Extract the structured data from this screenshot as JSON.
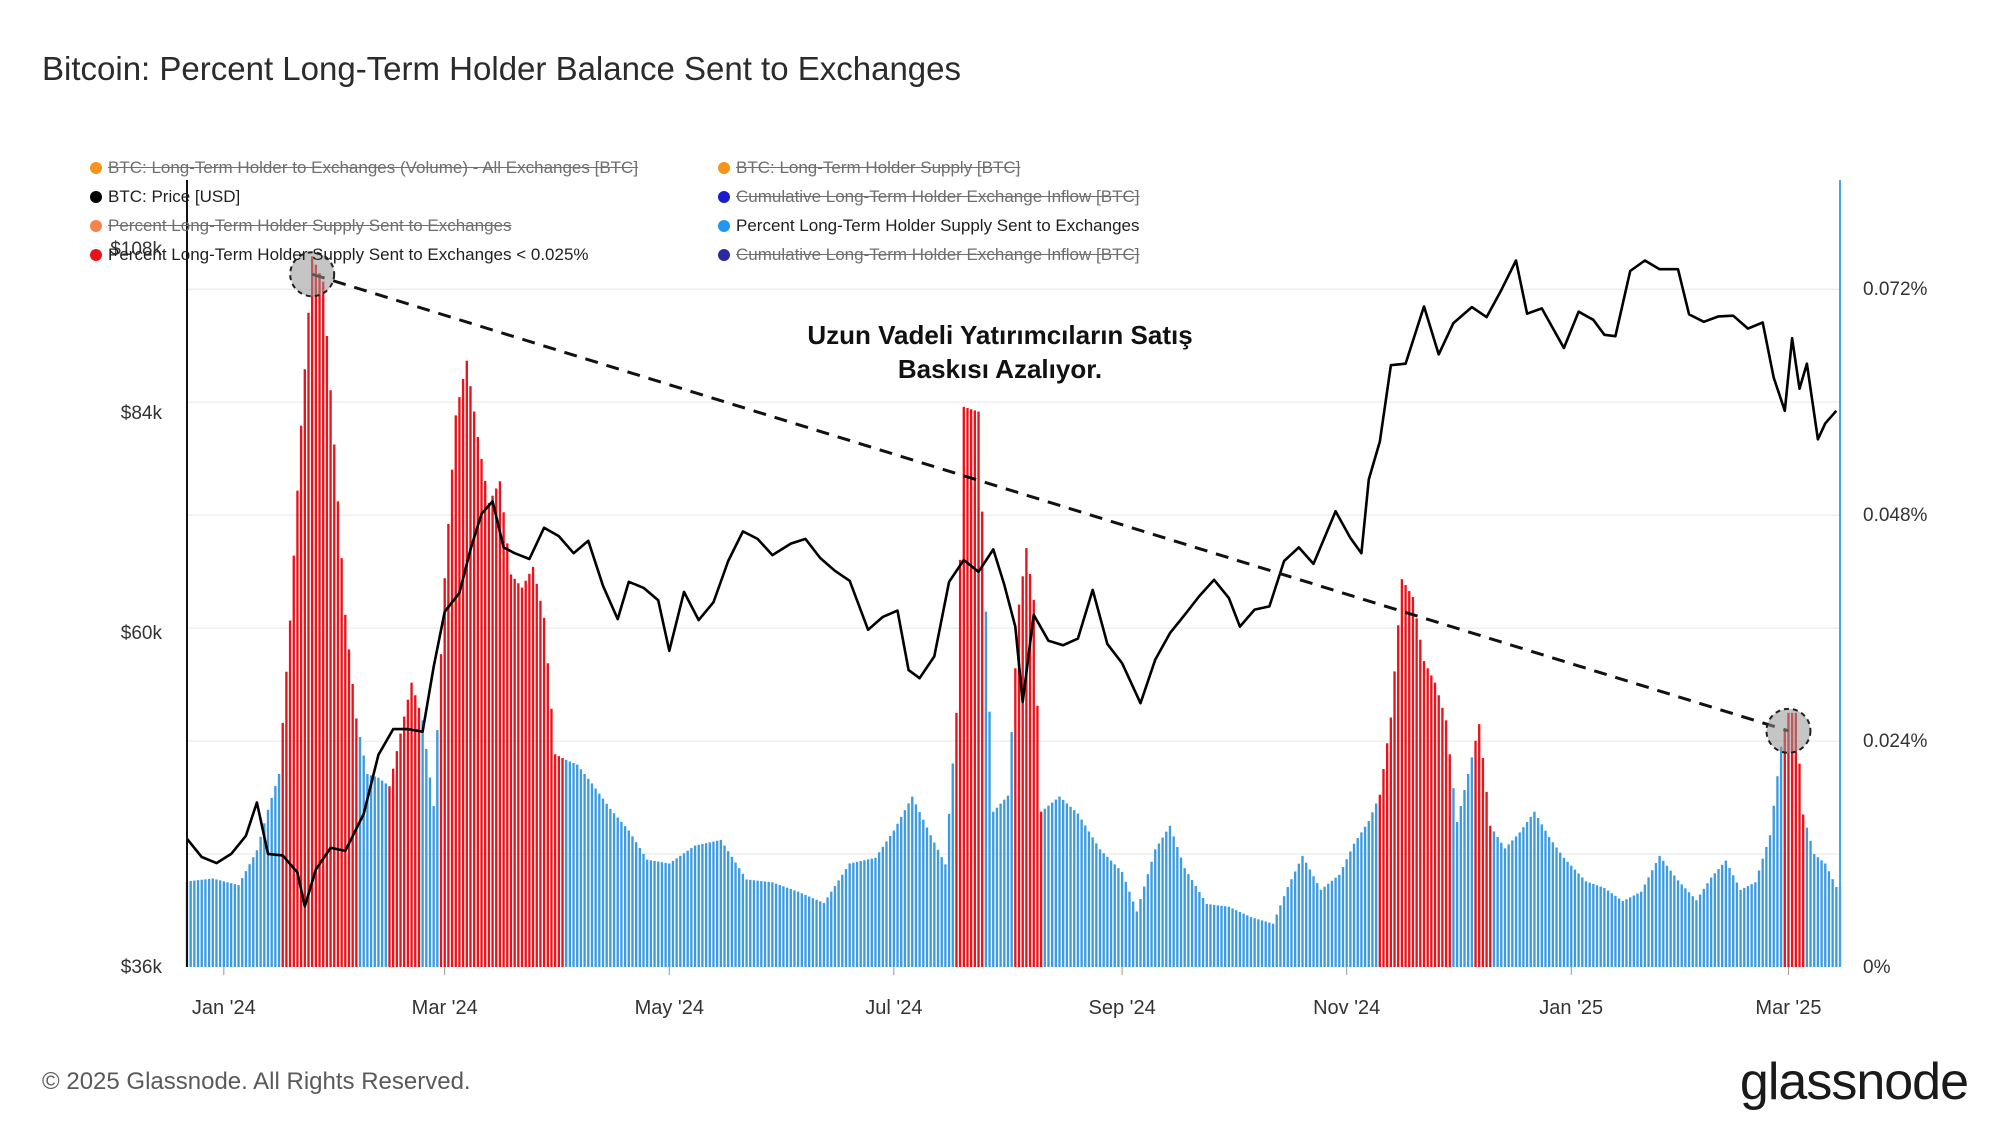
{
  "title": "Bitcoin: Percent Long-Term Holder Balance Sent to Exchanges",
  "copyright": "© 2025 Glassnode. All Rights Reserved.",
  "logo": "glassnode",
  "annotation": [
    "Uzun Vadeli Yatırımcıların Satış",
    "Baskısı Azalıyor."
  ],
  "legend": [
    {
      "label": "BTC: Long-Term Holder to Exchanges (Volume) - All Exchanges [BTC]",
      "color": "#f7931a",
      "enabled": false
    },
    {
      "label": "BTC: Long-Term Holder Supply [BTC]",
      "color": "#f7931a",
      "enabled": false
    },
    {
      "label": "BTC: Price [USD]",
      "color": "#000000",
      "enabled": true
    },
    {
      "label": "Cumulative Long-Term Holder Exchange Inflow [BTC]",
      "color": "#1c1ccf",
      "enabled": false
    },
    {
      "label": "Percent Long-Term Holder Supply Sent to Exchanges",
      "color": "#f5844c",
      "enabled": false
    },
    {
      "label": "Percent Long-Term Holder Supply Sent to Exchanges",
      "color": "#2196f3",
      "enabled": true
    },
    {
      "label": "Percent Long-Term Holder Supply Sent to Exchanges < 0.025%",
      "color": "#e8141c",
      "enabled": true
    },
    {
      "label": "Cumulative Long-Term Holder Exchange Inflow [BTC]",
      "color": "#2a2aa0",
      "enabled": false
    }
  ],
  "colors": {
    "bar_normal": "#3d9be0",
    "bar_highlight": "#e8141c",
    "price": "#000000",
    "grid": "#e6e6e6",
    "right_axis": "#4aa3e8"
  },
  "chart_data": {
    "type": "bar",
    "x_range": [
      "2023-12-22",
      "2025-03-15"
    ],
    "x_ticks": [
      {
        "date": "2024-01-01",
        "label": "Jan '24"
      },
      {
        "date": "2024-03-01",
        "label": "Mar '24"
      },
      {
        "date": "2024-05-01",
        "label": "May '24"
      },
      {
        "date": "2024-07-01",
        "label": "Jul '24"
      },
      {
        "date": "2024-09-01",
        "label": "Sep '24"
      },
      {
        "date": "2024-11-01",
        "label": "Nov '24"
      },
      {
        "date": "2025-01-01",
        "label": "Jan '25"
      },
      {
        "date": "2025-03-01",
        "label": "Mar '25"
      }
    ],
    "y_left": {
      "ticks": [
        36000,
        60000,
        84000,
        108000
      ],
      "labels": [
        "$36k",
        "$60k",
        "$84k",
        "$108k"
      ],
      "range": [
        36000,
        120000
      ],
      "scale": "log"
    },
    "y_right": {
      "ticks": [
        0,
        0.024,
        0.048,
        0.072
      ],
      "labels": [
        "0%",
        "0.024%",
        "0.048%",
        "0.072%"
      ],
      "range": [
        0,
        0.0836
      ]
    },
    "price_series": [
      [
        "2023-12-22",
        43800
      ],
      [
        "2023-12-26",
        42600
      ],
      [
        "2023-12-30",
        42200
      ],
      [
        "2024-01-03",
        42800
      ],
      [
        "2024-01-07",
        44000
      ],
      [
        "2024-01-10",
        46300
      ],
      [
        "2024-01-13",
        42800
      ],
      [
        "2024-01-17",
        42700
      ],
      [
        "2024-01-21",
        41600
      ],
      [
        "2024-01-23",
        39500
      ],
      [
        "2024-01-26",
        41800
      ],
      [
        "2024-01-30",
        43200
      ],
      [
        "2024-02-03",
        43000
      ],
      [
        "2024-02-08",
        45500
      ],
      [
        "2024-02-12",
        49800
      ],
      [
        "2024-02-16",
        51800
      ],
      [
        "2024-02-20",
        51800
      ],
      [
        "2024-02-24",
        51600
      ],
      [
        "2024-02-27",
        57000
      ],
      [
        "2024-03-01",
        62000
      ],
      [
        "2024-03-05",
        63800
      ],
      [
        "2024-03-08",
        68200
      ],
      [
        "2024-03-11",
        72000
      ],
      [
        "2024-03-14",
        73400
      ],
      [
        "2024-03-17",
        68400
      ],
      [
        "2024-03-20",
        67800
      ],
      [
        "2024-03-24",
        67200
      ],
      [
        "2024-03-28",
        70500
      ],
      [
        "2024-04-01",
        69600
      ],
      [
        "2024-04-05",
        67800
      ],
      [
        "2024-04-09",
        69100
      ],
      [
        "2024-04-13",
        64500
      ],
      [
        "2024-04-17",
        61300
      ],
      [
        "2024-04-20",
        64900
      ],
      [
        "2024-04-24",
        64300
      ],
      [
        "2024-04-28",
        63100
      ],
      [
        "2024-05-01",
        58400
      ],
      [
        "2024-05-05",
        63900
      ],
      [
        "2024-05-09",
        61200
      ],
      [
        "2024-05-13",
        62900
      ],
      [
        "2024-05-17",
        67000
      ],
      [
        "2024-05-21",
        70100
      ],
      [
        "2024-05-25",
        69300
      ],
      [
        "2024-05-29",
        67600
      ],
      [
        "2024-06-03",
        68800
      ],
      [
        "2024-06-07",
        69300
      ],
      [
        "2024-06-11",
        67300
      ],
      [
        "2024-06-15",
        66000
      ],
      [
        "2024-06-19",
        65000
      ],
      [
        "2024-06-24",
        60300
      ],
      [
        "2024-06-28",
        61500
      ],
      [
        "2024-07-02",
        62100
      ],
      [
        "2024-07-05",
        56700
      ],
      [
        "2024-07-08",
        56000
      ],
      [
        "2024-07-12",
        57900
      ],
      [
        "2024-07-16",
        64900
      ],
      [
        "2024-07-20",
        67100
      ],
      [
        "2024-07-24",
        65900
      ],
      [
        "2024-07-28",
        68200
      ],
      [
        "2024-07-31",
        64600
      ],
      [
        "2024-08-03",
        60600
      ],
      [
        "2024-08-05",
        54000
      ],
      [
        "2024-08-08",
        61700
      ],
      [
        "2024-08-12",
        59300
      ],
      [
        "2024-08-16",
        58900
      ],
      [
        "2024-08-20",
        59500
      ],
      [
        "2024-08-24",
        64100
      ],
      [
        "2024-08-28",
        59000
      ],
      [
        "2024-09-01",
        57300
      ],
      [
        "2024-09-06",
        53900
      ],
      [
        "2024-09-10",
        57600
      ],
      [
        "2024-09-14",
        60000
      ],
      [
        "2024-09-18",
        61700
      ],
      [
        "2024-09-22",
        63500
      ],
      [
        "2024-09-26",
        65100
      ],
      [
        "2024-09-30",
        63300
      ],
      [
        "2024-10-03",
        60600
      ],
      [
        "2024-10-07",
        62200
      ],
      [
        "2024-10-11",
        62500
      ],
      [
        "2024-10-15",
        67000
      ],
      [
        "2024-10-19",
        68400
      ],
      [
        "2024-10-23",
        66700
      ],
      [
        "2024-10-29",
        72300
      ],
      [
        "2024-11-02",
        69400
      ],
      [
        "2024-11-05",
        67800
      ],
      [
        "2024-11-07",
        75900
      ],
      [
        "2024-11-10",
        80400
      ],
      [
        "2024-11-13",
        90400
      ],
      [
        "2024-11-17",
        90600
      ],
      [
        "2024-11-22",
        98900
      ],
      [
        "2024-11-26",
        91900
      ],
      [
        "2024-11-30",
        96400
      ],
      [
        "2024-12-05",
        98800
      ],
      [
        "2024-12-09",
        97300
      ],
      [
        "2024-12-13",
        101400
      ],
      [
        "2024-12-17",
        106100
      ],
      [
        "2024-12-20",
        97800
      ],
      [
        "2024-12-24",
        98600
      ],
      [
        "2024-12-30",
        92800
      ],
      [
        "2025-01-03",
        98100
      ],
      [
        "2025-01-07",
        96900
      ],
      [
        "2025-01-10",
        94700
      ],
      [
        "2025-01-13",
        94500
      ],
      [
        "2025-01-17",
        104400
      ],
      [
        "2025-01-21",
        106100
      ],
      [
        "2025-01-25",
        104700
      ],
      [
        "2025-01-30",
        104700
      ],
      [
        "2025-02-02",
        97700
      ],
      [
        "2025-02-06",
        96600
      ],
      [
        "2025-02-10",
        97400
      ],
      [
        "2025-02-14",
        97500
      ],
      [
        "2025-02-18",
        95600
      ],
      [
        "2025-02-22",
        96500
      ],
      [
        "2025-02-25",
        88700
      ],
      [
        "2025-02-28",
        84300
      ],
      [
        "2025-03-02",
        94200
      ],
      [
        "2025-03-04",
        87200
      ],
      [
        "2025-03-06",
        90600
      ],
      [
        "2025-03-09",
        80700
      ],
      [
        "2025-03-11",
        82700
      ],
      [
        "2025-03-14",
        84300
      ]
    ],
    "pct_series": [
      [
        "2023-12-22",
        0.0091
      ],
      [
        "2023-12-29",
        0.0094
      ],
      [
        "2024-01-05",
        0.0087
      ],
      [
        "2024-01-10",
        0.0124
      ],
      [
        "2024-01-13",
        0.0167
      ],
      [
        "2024-01-16",
        0.0205
      ],
      [
        "2024-01-19",
        0.0368
      ],
      [
        "2024-01-22",
        0.0575
      ],
      [
        "2024-01-25",
        0.0755
      ],
      [
        "2024-01-28",
        0.0728
      ],
      [
        "2024-01-31",
        0.0555
      ],
      [
        "2024-02-03",
        0.0374
      ],
      [
        "2024-02-06",
        0.0264
      ],
      [
        "2024-02-09",
        0.0205
      ],
      [
        "2024-02-12",
        0.0201
      ],
      [
        "2024-02-15",
        0.0192
      ],
      [
        "2024-02-18",
        0.0248
      ],
      [
        "2024-02-21",
        0.0302
      ],
      [
        "2024-02-24",
        0.0262
      ],
      [
        "2024-02-27",
        0.0171
      ],
      [
        "2024-03-01",
        0.0413
      ],
      [
        "2024-03-04",
        0.0586
      ],
      [
        "2024-03-07",
        0.0644
      ],
      [
        "2024-03-10",
        0.0563
      ],
      [
        "2024-03-13",
        0.0493
      ],
      [
        "2024-03-16",
        0.0516
      ],
      [
        "2024-03-19",
        0.0417
      ],
      [
        "2024-03-22",
        0.0403
      ],
      [
        "2024-03-25",
        0.0425
      ],
      [
        "2024-03-28",
        0.0371
      ],
      [
        "2024-03-31",
        0.0226
      ],
      [
        "2024-04-03",
        0.022
      ],
      [
        "2024-04-06",
        0.0215
      ],
      [
        "2024-04-10",
        0.0195
      ],
      [
        "2024-04-15",
        0.0168
      ],
      [
        "2024-04-20",
        0.0145
      ],
      [
        "2024-04-25",
        0.0114
      ],
      [
        "2024-05-01",
        0.011
      ],
      [
        "2024-05-08",
        0.0129
      ],
      [
        "2024-05-15",
        0.0135
      ],
      [
        "2024-05-22",
        0.0093
      ],
      [
        "2024-05-29",
        0.009
      ],
      [
        "2024-06-05",
        0.008
      ],
      [
        "2024-06-12",
        0.0068
      ],
      [
        "2024-06-19",
        0.011
      ],
      [
        "2024-06-26",
        0.0116
      ],
      [
        "2024-07-01",
        0.0145
      ],
      [
        "2024-07-06",
        0.0181
      ],
      [
        "2024-07-11",
        0.014
      ],
      [
        "2024-07-15",
        0.0109
      ],
      [
        "2024-07-18",
        0.027
      ],
      [
        "2024-07-20",
        0.0595
      ],
      [
        "2024-07-24",
        0.059
      ],
      [
        "2024-07-28",
        0.0165
      ],
      [
        "2024-08-01",
        0.0182
      ],
      [
        "2024-08-04",
        0.0385
      ],
      [
        "2024-08-06",
        0.0445
      ],
      [
        "2024-08-08",
        0.039
      ],
      [
        "2024-08-10",
        0.0165
      ],
      [
        "2024-08-15",
        0.0181
      ],
      [
        "2024-08-20",
        0.0163
      ],
      [
        "2024-08-26",
        0.0125
      ],
      [
        "2024-09-01",
        0.0101
      ],
      [
        "2024-09-05",
        0.0059
      ],
      [
        "2024-09-10",
        0.0125
      ],
      [
        "2024-09-14",
        0.015
      ],
      [
        "2024-09-18",
        0.0105
      ],
      [
        "2024-09-24",
        0.0067
      ],
      [
        "2024-09-30",
        0.0064
      ],
      [
        "2024-10-06",
        0.0053
      ],
      [
        "2024-10-12",
        0.0046
      ],
      [
        "2024-10-16",
        0.0085
      ],
      [
        "2024-10-20",
        0.0118
      ],
      [
        "2024-10-25",
        0.0082
      ],
      [
        "2024-10-30",
        0.0098
      ],
      [
        "2024-11-03",
        0.0131
      ],
      [
        "2024-11-07",
        0.0155
      ],
      [
        "2024-11-10",
        0.0183
      ],
      [
        "2024-11-13",
        0.0265
      ],
      [
        "2024-11-16",
        0.0412
      ],
      [
        "2024-11-19",
        0.0393
      ],
      [
        "2024-11-22",
        0.0325
      ],
      [
        "2024-11-25",
        0.0302
      ],
      [
        "2024-11-28",
        0.0262
      ],
      [
        "2024-12-01",
        0.0154
      ],
      [
        "2024-12-04",
        0.0205
      ],
      [
        "2024-12-07",
        0.0258
      ],
      [
        "2024-12-10",
        0.015
      ],
      [
        "2024-12-14",
        0.0126
      ],
      [
        "2024-12-18",
        0.0143
      ],
      [
        "2024-12-22",
        0.0165
      ],
      [
        "2024-12-26",
        0.0138
      ],
      [
        "2024-12-30",
        0.0116
      ],
      [
        "2025-01-05",
        0.0091
      ],
      [
        "2025-01-10",
        0.0084
      ],
      [
        "2025-01-15",
        0.007
      ],
      [
        "2025-01-20",
        0.008
      ],
      [
        "2025-01-25",
        0.0118
      ],
      [
        "2025-01-30",
        0.0092
      ],
      [
        "2025-02-04",
        0.0071
      ],
      [
        "2025-02-08",
        0.0095
      ],
      [
        "2025-02-12",
        0.0113
      ],
      [
        "2025-02-16",
        0.0082
      ],
      [
        "2025-02-20",
        0.009
      ],
      [
        "2025-02-24",
        0.014
      ],
      [
        "2025-02-27",
        0.0234
      ],
      [
        "2025-03-01",
        0.027
      ],
      [
        "2025-03-03",
        0.027
      ],
      [
        "2025-03-05",
        0.0162
      ],
      [
        "2025-03-08",
        0.012
      ],
      [
        "2025-03-11",
        0.011
      ],
      [
        "2025-03-14",
        0.0085
      ]
    ],
    "highlight_ranges": [
      [
        "2024-01-17",
        "2024-02-06"
      ],
      [
        "2024-02-15",
        "2024-02-23"
      ],
      [
        "2024-02-29",
        "2024-04-02"
      ],
      [
        "2024-07-18",
        "2024-07-25"
      ],
      [
        "2024-08-03",
        "2024-08-10"
      ],
      [
        "2024-11-10",
        "2024-11-29"
      ],
      [
        "2024-12-06",
        "2024-12-10"
      ],
      [
        "2025-02-28",
        "2025-03-05"
      ]
    ],
    "trendline": [
      [
        "2024-01-25",
        0.0755
      ],
      [
        "2025-03-01",
        0.027
      ]
    ]
  }
}
